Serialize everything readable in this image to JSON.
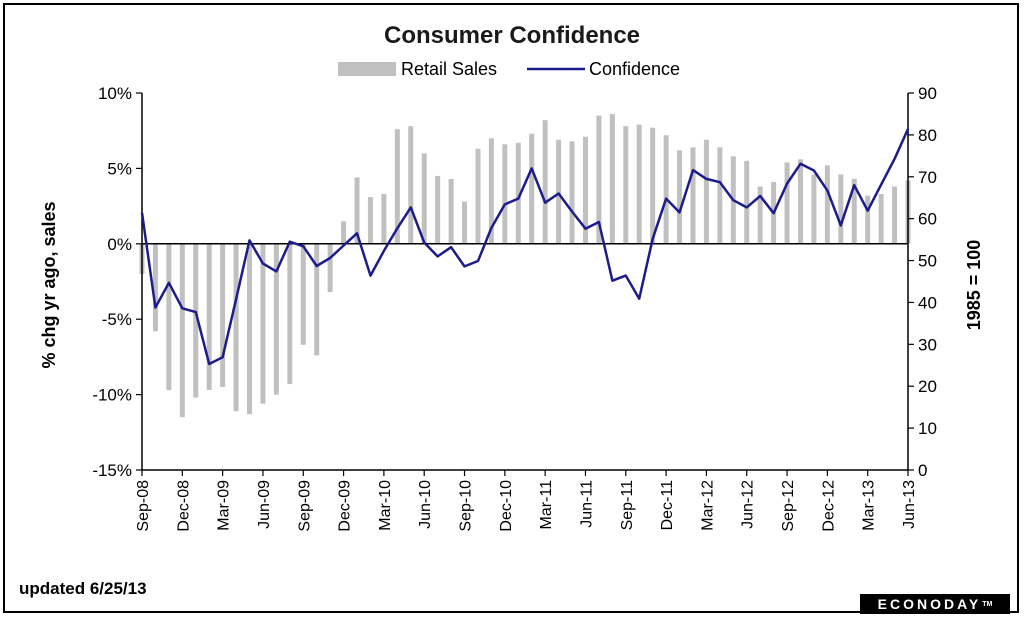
{
  "footer": {
    "updated": "updated 6/25/13",
    "brand": "ECONODAY",
    "brand_mark": "TM"
  },
  "chart_data": {
    "type": "bar+line",
    "title": "Consumer Confidence",
    "legend": {
      "placement": "top-center",
      "entries": [
        "Retail Sales",
        "Confidence"
      ]
    },
    "y_left": {
      "label": "% chg yr ago, sales",
      "range": [
        -15,
        10
      ],
      "ticks": [
        10,
        5,
        0,
        -5,
        -10,
        -15
      ],
      "tick_labels": [
        "10%",
        "5%",
        "0%",
        "-5%",
        "-10%",
        "-15%"
      ]
    },
    "y_right": {
      "label": "1985 = 100",
      "range": [
        0,
        90
      ],
      "ticks": [
        90,
        80,
        70,
        60,
        50,
        40,
        30,
        20,
        10,
        0
      ]
    },
    "x": {
      "tick_labels": [
        "Sep-08",
        "Dec-08",
        "Mar-09",
        "Jun-09",
        "Sep-09",
        "Dec-09",
        "Mar-10",
        "Jun-10",
        "Sep-10",
        "Dec-10",
        "Mar-11",
        "Jun-11",
        "Sep-11",
        "Dec-11",
        "Mar-12",
        "Jun-12",
        "Sep-12",
        "Dec-12",
        "Mar-13",
        "Jun-13"
      ]
    },
    "months": [
      "Sep-08",
      "Oct-08",
      "Nov-08",
      "Dec-08",
      "Jan-09",
      "Feb-09",
      "Mar-09",
      "Apr-09",
      "May-09",
      "Jun-09",
      "Jul-09",
      "Aug-09",
      "Sep-09",
      "Oct-09",
      "Nov-09",
      "Dec-09",
      "Jan-10",
      "Feb-10",
      "Mar-10",
      "Apr-10",
      "May-10",
      "Jun-10",
      "Jul-10",
      "Aug-10",
      "Sep-10",
      "Oct-10",
      "Nov-10",
      "Dec-10",
      "Jan-11",
      "Feb-11",
      "Mar-11",
      "Apr-11",
      "May-11",
      "Jun-11",
      "Jul-11",
      "Aug-11",
      "Sep-11",
      "Oct-11",
      "Nov-11",
      "Dec-11",
      "Jan-12",
      "Feb-12",
      "Mar-12",
      "Apr-12",
      "May-12",
      "Jun-12",
      "Jul-12",
      "Aug-12",
      "Sep-12",
      "Oct-12",
      "Nov-12",
      "Dec-12",
      "Jan-13",
      "Feb-13",
      "Mar-13",
      "Apr-13",
      "May-13",
      "Jun-13"
    ],
    "series": [
      {
        "name": "Retail Sales",
        "axis": "left",
        "color": "#c0c0c0",
        "values": [
          -2.0,
          -5.8,
          -9.7,
          -11.5,
          -10.2,
          -9.7,
          -9.5,
          -11.1,
          -11.3,
          -10.6,
          -10.0,
          -9.3,
          -6.7,
          -7.4,
          -3.2,
          1.5,
          4.4,
          3.1,
          3.3,
          7.6,
          7.8,
          6.0,
          4.5,
          4.3,
          2.8,
          6.3,
          7.0,
          6.6,
          6.7,
          7.3,
          8.2,
          6.9,
          6.8,
          7.1,
          8.5,
          8.6,
          7.8,
          7.9,
          7.7,
          7.2,
          6.2,
          6.4,
          6.9,
          6.4,
          5.8,
          5.5,
          3.8,
          4.1,
          5.4,
          5.6,
          4.6,
          5.2,
          4.6,
          4.3,
          3.2,
          3.3,
          3.8,
          4.2
        ]
      },
      {
        "name": "Confidence",
        "axis": "right",
        "color": "#1c1c8c",
        "values": [
          61.4,
          38.8,
          44.7,
          38.6,
          37.7,
          25.3,
          26.9,
          40.8,
          54.8,
          49.3,
          47.4,
          54.5,
          53.4,
          48.7,
          50.6,
          53.6,
          56.5,
          46.4,
          52.3,
          57.7,
          62.7,
          54.3,
          51.0,
          53.2,
          48.6,
          49.9,
          57.8,
          63.4,
          64.8,
          72.0,
          63.8,
          66.0,
          61.7,
          57.6,
          59.2,
          45.2,
          46.4,
          40.9,
          55.2,
          64.8,
          61.5,
          71.6,
          69.5,
          68.7,
          64.4,
          62.7,
          65.4,
          61.3,
          68.4,
          73.1,
          71.5,
          66.7,
          58.4,
          68.0,
          61.9,
          68.1,
          74.3,
          81.4
        ]
      }
    ]
  }
}
